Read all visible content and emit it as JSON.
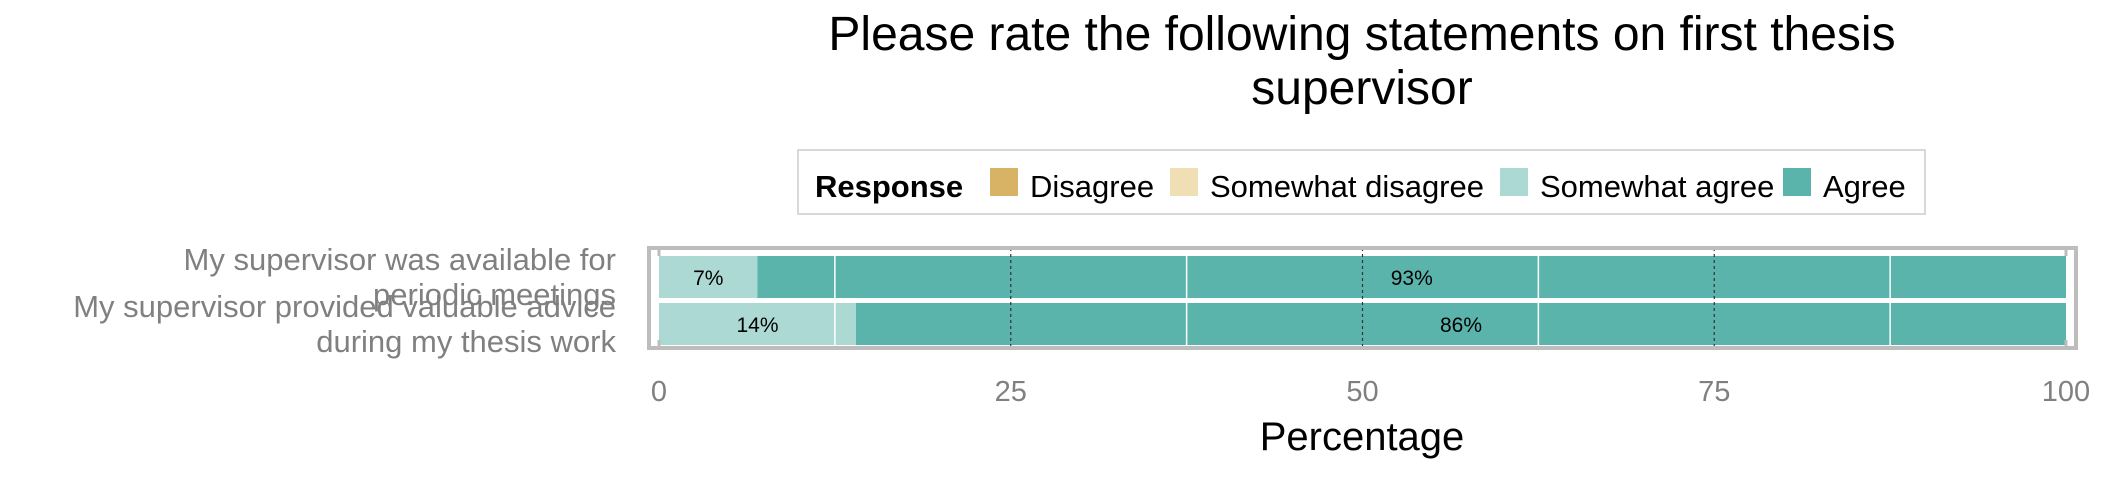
{
  "chart_data": {
    "type": "bar",
    "orientation": "horizontal",
    "stacked": true,
    "title": [
      "Please rate the following statements on first thesis",
      "supervisor"
    ],
    "xlabel": "Percentage",
    "ylabel": "",
    "xlim": [
      0,
      100
    ],
    "xticks": [
      "0",
      "25",
      "50",
      "75",
      "100"
    ],
    "grid": true,
    "legend": {
      "title": "Response",
      "placement": "top",
      "entries": [
        {
          "label": "Disagree",
          "color": "#D8B365"
        },
        {
          "label": "Somewhat disagree",
          "color": "#F0DEB5"
        },
        {
          "label": "Somewhat agree",
          "color": "#ADD9D4"
        },
        {
          "label": "Agree",
          "color": "#5AB4AC"
        }
      ]
    },
    "categories": [
      {
        "lines": [
          "My supervisor was available for",
          "periodic meetings"
        ]
      },
      {
        "lines": [
          "My supervisor provided valuable advice",
          "during my thesis work"
        ]
      }
    ],
    "series": [
      {
        "name": "Disagree",
        "values": [
          0,
          0
        ],
        "labels": [
          "",
          ""
        ]
      },
      {
        "name": "Somewhat disagree",
        "values": [
          0,
          0
        ],
        "labels": [
          "",
          ""
        ]
      },
      {
        "name": "Somewhat agree",
        "values": [
          7,
          14
        ],
        "labels": [
          "7%",
          "14%"
        ]
      },
      {
        "name": "Agree",
        "values": [
          93,
          86
        ],
        "labels": [
          "93%",
          "86%"
        ]
      }
    ]
  }
}
